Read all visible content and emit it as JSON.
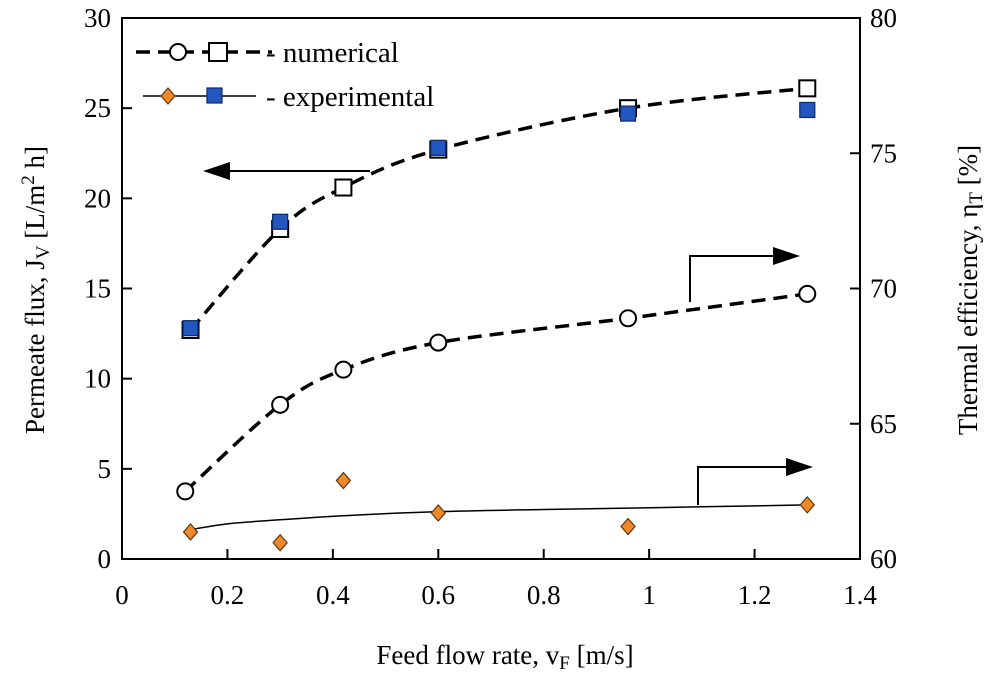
{
  "chart_data": {
    "type": "scatter",
    "xlabel": {
      "main": "Feed flow rate, v",
      "sub": "F",
      "unit": " [m/s]"
    },
    "ylabel_left": {
      "main": "Permeate flux, J",
      "sub": "V",
      "mid": " [L/m",
      "sup": "2",
      "end": " h]"
    },
    "ylabel_right": {
      "main": "Thermal efficiency, η",
      "sub": "T",
      "end": " [%]"
    },
    "xlim": [
      0,
      1.4
    ],
    "ylim_left": [
      0,
      30
    ],
    "ylim_right": [
      60,
      80
    ],
    "x_ticks": [
      "0",
      "0.2",
      "0.4",
      "0.6",
      "0.8",
      "1",
      "1.2",
      "1.4"
    ],
    "y_left_ticks": [
      "0",
      "5",
      "10",
      "15",
      "20",
      "25",
      "30"
    ],
    "y_right_ticks": [
      "60",
      "65",
      "70",
      "75",
      "80"
    ],
    "legend": {
      "numerical": "- numerical",
      "experimental": "- experimental"
    },
    "series": [
      {
        "name": "flux numerical",
        "axis": "left",
        "marker": "square-open",
        "line": "dashed",
        "x": [
          0.13,
          0.3,
          0.42,
          0.6,
          0.96,
          1.3
        ],
        "y": [
          12.7,
          18.3,
          20.6,
          22.7,
          25.0,
          26.1
        ]
      },
      {
        "name": "flux experimental",
        "axis": "left",
        "marker": "square-blue",
        "x": [
          0.13,
          0.3,
          0.6,
          0.96,
          1.3
        ],
        "y": [
          12.8,
          18.7,
          22.8,
          24.7,
          24.9
        ]
      },
      {
        "name": "efficiency numerical",
        "axis": "right",
        "marker": "circle-open",
        "line": "dashed",
        "x": [
          0.12,
          0.3,
          0.42,
          0.6,
          0.96,
          1.3
        ],
        "y": [
          62.5,
          65.7,
          67.0,
          68.0,
          68.9,
          69.8
        ]
      },
      {
        "name": "efficiency experimental",
        "axis": "right",
        "marker": "diamond-orange",
        "x": [
          0.13,
          0.3,
          0.42,
          0.6,
          0.96,
          1.3
        ],
        "y": [
          61.0,
          60.6,
          62.9,
          61.7,
          61.2,
          62.0
        ]
      },
      {
        "name": "efficiency experimental trend",
        "axis": "right",
        "line": "solid",
        "x": [
          0.12,
          0.2,
          0.3,
          0.42,
          0.6,
          0.8,
          0.96,
          1.1,
          1.3
        ],
        "y": [
          61.05,
          61.3,
          61.45,
          61.6,
          61.75,
          61.83,
          61.88,
          61.93,
          62.0
        ]
      }
    ],
    "annotations": [
      {
        "type": "arrow",
        "points_to": "left axis"
      },
      {
        "type": "arrow",
        "points_to": "right axis"
      },
      {
        "type": "arrow",
        "points_to": "right axis"
      }
    ]
  }
}
